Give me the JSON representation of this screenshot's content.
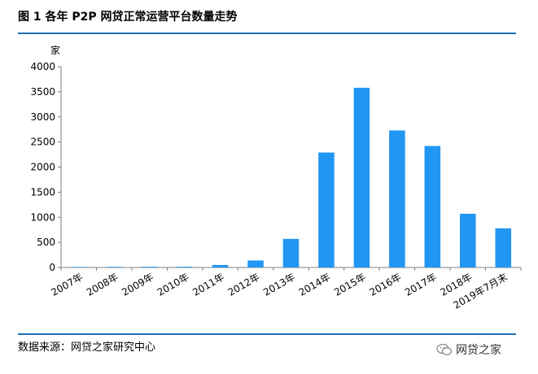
{
  "figure": {
    "title": "图 1  各年 P2P 网贷正常运营平台数量走势",
    "source": "数据来源：网贷之家研究中心",
    "watermark": "网贷之家",
    "watermark_icon": "wechat-icon"
  },
  "chart_data": {
    "type": "bar",
    "ylabel": "家",
    "ylim": [
      0,
      4000
    ],
    "yticks": [
      0,
      500,
      1000,
      1500,
      2000,
      2500,
      3000,
      3500,
      4000
    ],
    "grid": false,
    "bar_color": "#2196f3",
    "categories": [
      "2007年",
      "2008年",
      "2009年",
      "2010年",
      "2011年",
      "2012年",
      "2013年",
      "2014年",
      "2015年",
      "2016年",
      "2017年",
      "2018年",
      "2019年7月末"
    ],
    "values": [
      10,
      12,
      14,
      15,
      50,
      140,
      570,
      2290,
      3580,
      2730,
      2420,
      1070,
      780
    ]
  }
}
